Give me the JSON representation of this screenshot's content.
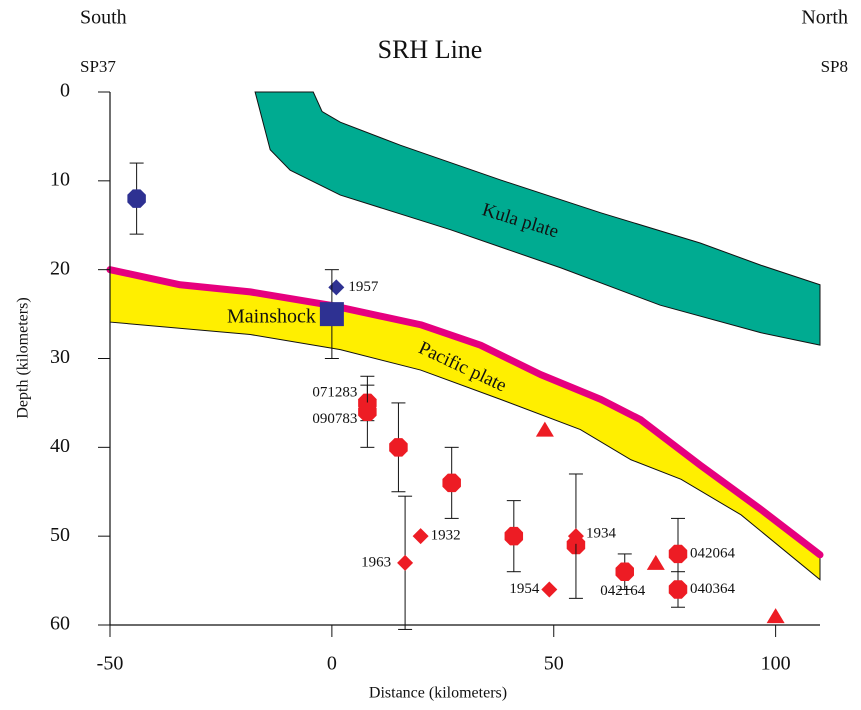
{
  "chart_data": {
    "type": "scatter",
    "title": "SRH Line",
    "corner_labels": [
      "South",
      "North",
      "SP37",
      "SP8"
    ],
    "x_label": "Distance (kilometers)",
    "y_label": "Depth (kilometers)",
    "xlim": [
      -50,
      110
    ],
    "xticks": [
      -50,
      0,
      50,
      100
    ],
    "ylim": [
      0,
      60
    ],
    "yticks": [
      0,
      10,
      20,
      30,
      40,
      50,
      60
    ],
    "y_inverted": true,
    "bands": [
      {
        "name": "Kula plate",
        "color": "#00ab91",
        "x": [
          -4.2,
          -2.2,
          1.9,
          15.5,
          38,
          60.6,
          83,
          96.7,
          110,
          110,
          96.7,
          74,
          51.6,
          26.7,
          1.9,
          -9.4,
          -13.9,
          -17.3
        ],
        "y": [
          0,
          2.2,
          3.4,
          6,
          9.9,
          13.6,
          17,
          19.5,
          21.7,
          28.5,
          27.1,
          24,
          19.8,
          15.5,
          11.6,
          8.8,
          6.5,
          0
        ]
      },
      {
        "name": "Pacific plate",
        "color": "#ffef00",
        "top_color": "#e6007e",
        "x": [
          -50,
          -34.2,
          -18.4,
          -0.4,
          20,
          33.5,
          47,
          60.6,
          69.6,
          83,
          96.7,
          110,
          110,
          92.2,
          78.7,
          67.4,
          56,
          38,
          20,
          1.9,
          -18.4,
          -50
        ],
        "y": [
          20,
          21.7,
          22.5,
          24,
          26.2,
          28.5,
          31.8,
          34.6,
          36.9,
          42,
          47,
          52.1,
          54.9,
          47.6,
          43.6,
          41.4,
          38,
          34.6,
          31.3,
          29,
          27.3,
          25.9
        ],
        "top_count": 12
      }
    ],
    "points": [
      {
        "x": -44,
        "y": 12,
        "err": 4,
        "shape": "octagon",
        "color": "#2e3192"
      },
      {
        "x": 1,
        "y": 22,
        "shape": "diamond",
        "color": "#2e3192",
        "label": "1957"
      },
      {
        "x": 0,
        "y": 25,
        "err": 5,
        "shape": "square",
        "color": "#2e3192",
        "label": "Mainshock"
      },
      {
        "x": 8,
        "y": 35,
        "err": 2,
        "shape": "octagon",
        "color": "#ed1c24",
        "label": "071283"
      },
      {
        "x": 8,
        "y": 36,
        "err": 4,
        "shape": "octagon",
        "color": "#ed1c24",
        "label": "090783"
      },
      {
        "x": 15,
        "y": 40,
        "err": 5,
        "shape": "octagon",
        "color": "#ed1c24"
      },
      {
        "x": 27,
        "y": 44,
        "err": 4,
        "shape": "octagon",
        "color": "#ed1c24"
      },
      {
        "x": 41,
        "y": 50,
        "err": 4,
        "shape": "octagon",
        "color": "#ed1c24"
      },
      {
        "x": 55,
        "y": 51,
        "shape": "octagon",
        "color": "#ed1c24"
      },
      {
        "x": 66,
        "y": 54,
        "err": 2,
        "shape": "octagon",
        "color": "#ed1c24",
        "label": "042164"
      },
      {
        "x": 78,
        "y": 52,
        "err": 4,
        "shape": "octagon",
        "color": "#ed1c24",
        "label": "042064"
      },
      {
        "x": 78,
        "y": 56,
        "err": 2,
        "shape": "octagon",
        "color": "#ed1c24",
        "label": "040364"
      },
      {
        "x": 20,
        "y": 50,
        "shape": "diamond",
        "color": "#ed1c24",
        "label": "1932"
      },
      {
        "x": 16.5,
        "y": 53,
        "err": 7.5,
        "shape": "diamond",
        "color": "#ed1c24",
        "label": "1963"
      },
      {
        "x": 55,
        "y": 50,
        "err": 7,
        "shape": "diamond",
        "color": "#ed1c24",
        "label": "1934"
      },
      {
        "x": 49,
        "y": 56,
        "shape": "diamond",
        "color": "#ed1c24",
        "label": "1954"
      },
      {
        "x": 48,
        "y": 38,
        "shape": "triangle",
        "color": "#ed1c24"
      },
      {
        "x": 73,
        "y": 53,
        "shape": "triangle",
        "color": "#ed1c24"
      },
      {
        "x": 100,
        "y": 59,
        "shape": "triangle",
        "color": "#ed1c24"
      }
    ]
  }
}
